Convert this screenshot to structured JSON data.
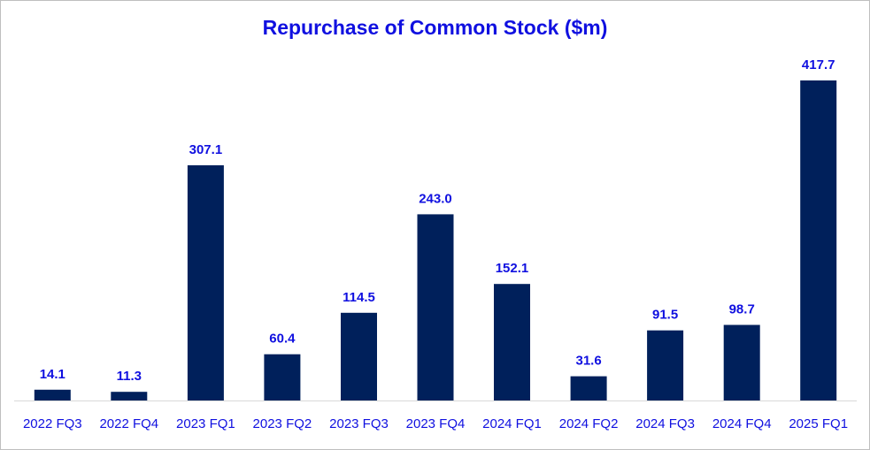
{
  "chart_data": {
    "type": "bar",
    "title": "Repurchase of Common Stock ($m)",
    "categories": [
      "2022 FQ3",
      "2022 FQ4",
      "2023 FQ1",
      "2023 FQ2",
      "2023 FQ3",
      "2023 FQ4",
      "2024 FQ1",
      "2024 FQ2",
      "2024 FQ3",
      "2024 FQ4",
      "2025 FQ1"
    ],
    "values": [
      14.1,
      11.3,
      307.1,
      60.4,
      114.5,
      243.0,
      152.1,
      31.6,
      91.5,
      98.7,
      417.7
    ],
    "value_labels": [
      "14.1",
      "11.3",
      "307.1",
      "60.4",
      "114.5",
      "243.0",
      "152.1",
      "31.6",
      "91.5",
      "98.7",
      "417.7"
    ],
    "xlabel": "",
    "ylabel": "",
    "ylim": [
      0,
      417.7
    ],
    "grid": false,
    "legend": "none",
    "colors": {
      "bar": "#00205b",
      "text": "#1010e0",
      "axis": "#d9d9d9",
      "border": "#bfbfbf"
    }
  }
}
